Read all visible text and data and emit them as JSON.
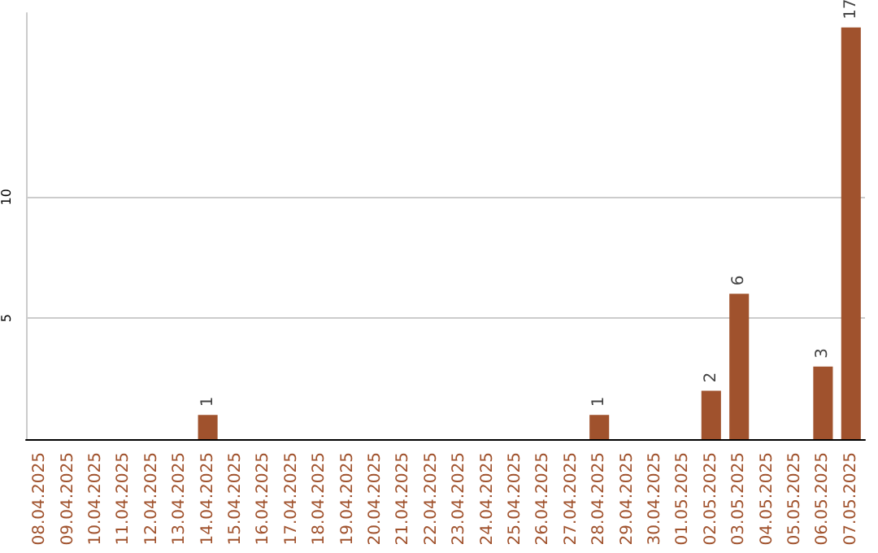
{
  "chart_data": {
    "type": "bar",
    "categories": [
      "08.04.2025",
      "09.04.2025",
      "10.04.2025",
      "11.04.2025",
      "12.04.2025",
      "13.04.2025",
      "14.04.2025",
      "15.04.2025",
      "16.04.2025",
      "17.04.2025",
      "18.04.2025",
      "19.04.2025",
      "20.04.2025",
      "21.04.2025",
      "22.04.2025",
      "23.04.2025",
      "24.04.2025",
      "25.04.2025",
      "26.04.2025",
      "27.04.2025",
      "28.04.2025",
      "29.04.2025",
      "30.04.2025",
      "01.05.2025",
      "02.05.2025",
      "03.05.2025",
      "04.05.2025",
      "05.05.2025",
      "06.05.2025",
      "07.05.2025"
    ],
    "values": [
      0,
      0,
      0,
      0,
      0,
      0,
      1,
      0,
      0,
      0,
      0,
      0,
      0,
      0,
      0,
      0,
      0,
      0,
      0,
      0,
      1,
      0,
      0,
      0,
      2,
      6,
      0,
      0,
      3,
      17
    ],
    "value_labels": [
      null,
      null,
      null,
      null,
      null,
      null,
      "1",
      null,
      null,
      null,
      null,
      null,
      null,
      null,
      null,
      null,
      null,
      null,
      null,
      null,
      "1",
      null,
      null,
      null,
      "2",
      "6",
      null,
      null,
      "3",
      "17"
    ],
    "color": "#a0522d",
    "ylim": [
      0,
      17.6
    ],
    "yticks": [
      5,
      10
    ],
    "grid": "y"
  }
}
